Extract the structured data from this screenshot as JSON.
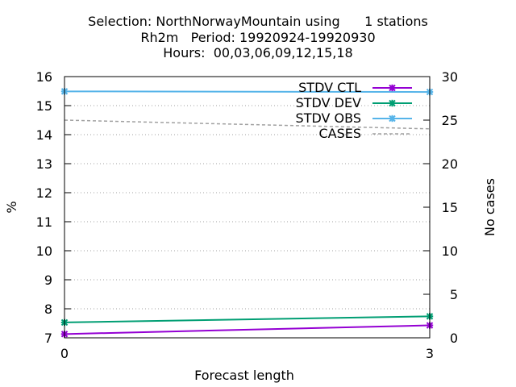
{
  "chart_data": {
    "type": "line",
    "title": [
      "Selection: NorthNorwayMountain using      1 stations",
      "Rh2m   Period: 19920924-19920930",
      "Hours:  00,03,06,09,12,15,18"
    ],
    "xlabel": "Forecast length",
    "ylabel": "%",
    "y2label": "No cases",
    "x": [
      0,
      3
    ],
    "xticks": [
      "0",
      "3"
    ],
    "xlim": [
      0,
      3
    ],
    "ylim": [
      7,
      16
    ],
    "yticks": [
      "7",
      "8",
      "9",
      "10",
      "11",
      "12",
      "13",
      "14",
      "15",
      "16"
    ],
    "y2lim": [
      0,
      30
    ],
    "y2ticks": [
      "0",
      "5",
      "10",
      "15",
      "20",
      "25",
      "30"
    ],
    "grid": "horizontal dotted",
    "legend_position": "top-right",
    "series": [
      {
        "name": "STDV CTL",
        "axis": "y",
        "values": [
          7.13,
          7.43
        ],
        "color": "#9400d3",
        "style": "line+points"
      },
      {
        "name": "STDV DEV",
        "axis": "y",
        "values": [
          7.53,
          7.74
        ],
        "color": "#009e73",
        "style": "line+points"
      },
      {
        "name": "STDV OBS",
        "axis": "y",
        "values": [
          15.49,
          15.47
        ],
        "color": "#56b4e9",
        "style": "line+points"
      },
      {
        "name": "CASES",
        "axis": "y2",
        "values": [
          25,
          24
        ],
        "color": "#a0a0a0",
        "style": "dashed"
      }
    ]
  }
}
